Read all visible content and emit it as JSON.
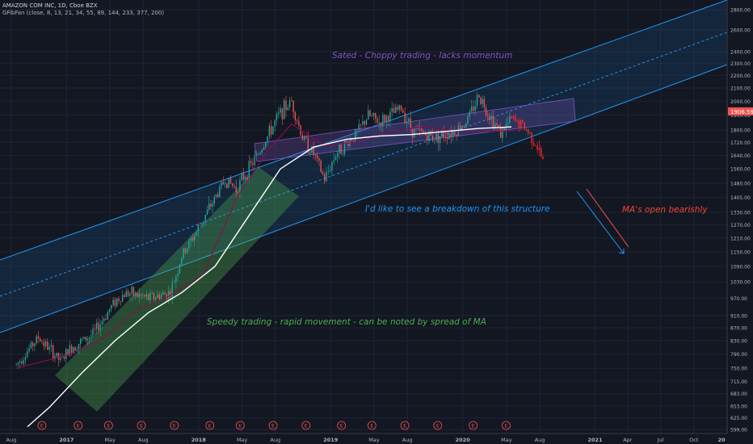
{
  "header": {
    "title": "AMAZON COM INC, 1D, Cboe BZX",
    "indicator": "GFibFan (close, 8, 13, 21, 34, 55, 89, 144, 233, 377, 200)"
  },
  "price_axis": {
    "last_price": "1906.59",
    "last_price_color": "#ef5350"
  },
  "annotations": {
    "sated": "Sated - Choppy trading - lacks momentum",
    "breakdown": "I'd like to see a breakdown of this structure",
    "ma_bearish": "MA's open bearishly",
    "speedy": "Speedy trading - rapid movement - can be noted by spread of MA"
  },
  "colors": {
    "background": "#131722",
    "grid": "#1f2433",
    "channel": "#2196f3",
    "up_candle": "#26a69a",
    "down_candle": "#ef5350",
    "projection": "#ff2a2a",
    "ma_fast": "#880e4f",
    "ma_slow": "#ffffff",
    "speedy_box": "#4caf50",
    "sated_box": "#7e57c2",
    "sated_text": "#7e57c2",
    "breakdown_text": "#2196f3",
    "bearish_text": "#f44336",
    "speedy_text": "#4caf50"
  },
  "chart_data": {
    "type": "line",
    "symbol": "AMAZON COM INC",
    "interval": "1D",
    "exchange": "Cboe BZX",
    "y_scale": "log",
    "ylim": [
      599,
      2850
    ],
    "y_ticks": [
      599.0,
      625.0,
      653.0,
      683.0,
      715.0,
      750.0,
      790.0,
      830.0,
      870.0,
      910.0,
      970.0,
      1030.0,
      1090.0,
      1150.0,
      1210.0,
      1270.0,
      1330.0,
      1405.0,
      1480.0,
      1560.0,
      1640.0,
      1720.0,
      1800.0,
      1900.0,
      2000.0,
      2100.0,
      2200.0,
      2300.0,
      2400.0,
      2600.0,
      2800.0
    ],
    "x_ticks": [
      "Aug",
      "2017",
      "May",
      "Aug",
      "2018",
      "May",
      "Aug",
      "2019",
      "May",
      "Aug",
      "2020",
      "May",
      "Aug",
      "2021",
      "Apr",
      "Jul",
      "Oct",
      "20"
    ],
    "earnings_marker": "E",
    "series": [
      {
        "name": "close",
        "x": [
          "2016-08",
          "2016-10",
          "2016-12",
          "2017-01",
          "2017-03",
          "2017-05",
          "2017-06",
          "2017-08",
          "2017-10",
          "2017-11",
          "2018-01",
          "2018-03",
          "2018-04",
          "2018-06",
          "2018-08",
          "2018-09",
          "2018-10",
          "2018-11",
          "2018-12",
          "2019-01",
          "2019-03",
          "2019-04",
          "2019-05",
          "2019-07",
          "2019-08",
          "2019-10",
          "2019-12",
          "2020-01",
          "2020-02",
          "2020-03",
          "2020-04",
          "2020-05",
          "2020-06",
          "2020-07",
          "2020-08"
        ],
        "y": [
          760,
          840,
          770,
          810,
          850,
          960,
          990,
          970,
          990,
          1130,
          1300,
          1500,
          1450,
          1650,
          1920,
          2000,
          1750,
          1650,
          1500,
          1650,
          1780,
          1900,
          1850,
          1950,
          1800,
          1750,
          1800,
          1870,
          2050,
          1900,
          1780,
          1870,
          1830,
          1740,
          1580
        ]
      },
      {
        "name": "MA fast",
        "x": [
          "2016-08",
          "2017-01",
          "2017-04",
          "2017-07",
          "2017-10",
          "2018-01",
          "2018-04",
          "2018-07",
          "2018-09",
          "2018-12",
          "2019-03",
          "2019-06",
          "2019-09",
          "2019-12",
          "2020-03",
          "2020-06"
        ],
        "y": [
          750,
          790,
          840,
          930,
          980,
          1060,
          1400,
          1680,
          1840,
          1700,
          1720,
          1790,
          1820,
          1790,
          1790,
          1800
        ]
      },
      {
        "name": "MA slow",
        "x": [
          "2016-09",
          "2016-11",
          "2017-02",
          "2017-05",
          "2017-08",
          "2017-11",
          "2018-02",
          "2018-05",
          "2018-08",
          "2018-11",
          "2019-02",
          "2019-05",
          "2019-08",
          "2019-11",
          "2020-02",
          "2020-05"
        ],
        "y": [
          605,
          650,
          740,
          830,
          920,
          990,
          1090,
          1300,
          1560,
          1690,
          1740,
          1760,
          1770,
          1790,
          1810,
          1820
        ]
      }
    ]
  }
}
